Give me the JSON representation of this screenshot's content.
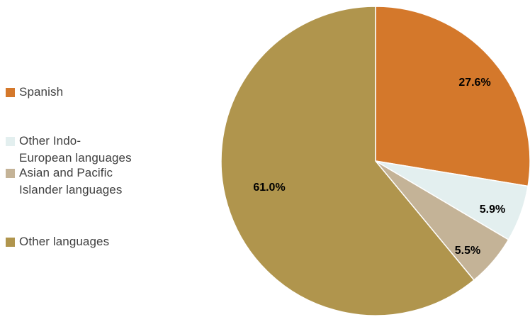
{
  "chart_data": {
    "type": "pie",
    "title": "",
    "categories": [
      "Spanish",
      "Other Indo-European languages",
      "Asian and Pacific Islander languages",
      "Other languages"
    ],
    "values": [
      27.6,
      5.9,
      5.5,
      61.0
    ],
    "value_labels": [
      "27.6%",
      "5.9%",
      "5.5%",
      "61.0%"
    ],
    "colors": [
      "#D4782B",
      "#E3EFEF",
      "#C4B397",
      "#B0954D"
    ],
    "legend_placement": "left"
  },
  "legend": {
    "items": [
      {
        "label": "Spanish",
        "color": "#D4782B"
      },
      {
        "label": "Other Indo-\nEuropean languages",
        "color": "#E3EFEF"
      },
      {
        "label": "Asian and Pacific\nIslander languages",
        "color": "#C4B397"
      },
      {
        "label": "Other languages",
        "color": "#B0954D"
      }
    ]
  }
}
